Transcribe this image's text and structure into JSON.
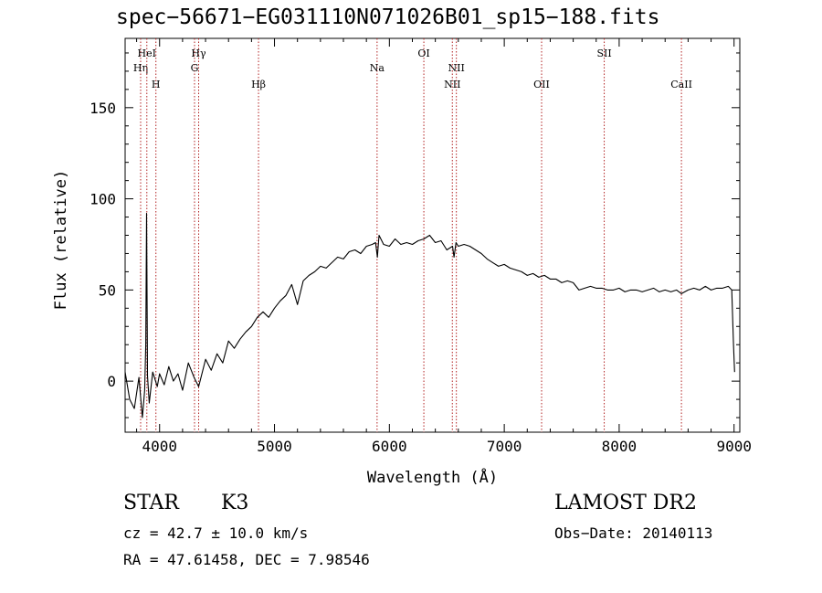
{
  "colors": {
    "spectrum": "#000000",
    "line_marker": "#b22222",
    "axis": "#000000"
  },
  "chart_data": {
    "type": "line",
    "title": "spec−56671−EG031110N071026B01_sp15−188.fits",
    "xlabel": "Wavelength (Å)",
    "ylabel": "Flux (relative)",
    "xlim": [
      3700,
      9050
    ],
    "ylim": [
      -28,
      188
    ],
    "grid": false,
    "x_ticks": [
      4000,
      5000,
      6000,
      7000,
      8000,
      9000
    ],
    "y_ticks": [
      0,
      50,
      100,
      150
    ],
    "series": [
      {
        "x": [
          3700,
          3740,
          3780,
          3820,
          3850,
          3870,
          3880,
          3887,
          3895,
          3910,
          3940,
          3980,
          4000,
          4040,
          4080,
          4120,
          4160,
          4200,
          4250,
          4300,
          4340,
          4400,
          4450,
          4500,
          4550,
          4600,
          4650,
          4700,
          4750,
          4800,
          4850,
          4900,
          4950,
          5000,
          5050,
          5100,
          5150,
          5200,
          5250,
          5300,
          5350,
          5400,
          5450,
          5500,
          5550,
          5600,
          5650,
          5700,
          5750,
          5800,
          5850,
          5880,
          5896,
          5910,
          5950,
          6000,
          6050,
          6100,
          6150,
          6200,
          6250,
          6300,
          6350,
          6400,
          6450,
          6500,
          6550,
          6563,
          6580,
          6600,
          6650,
          6700,
          6750,
          6800,
          6850,
          6900,
          6950,
          7000,
          7050,
          7100,
          7150,
          7200,
          7250,
          7300,
          7350,
          7400,
          7450,
          7500,
          7550,
          7600,
          7650,
          7700,
          7750,
          7800,
          7850,
          7900,
          7950,
          8000,
          8050,
          8100,
          8150,
          8200,
          8250,
          8300,
          8350,
          8400,
          8450,
          8500,
          8542,
          8600,
          8650,
          8700,
          8750,
          8800,
          8850,
          8900,
          8950,
          8980,
          8995,
          9005
        ],
        "y": [
          5,
          -10,
          -15,
          2,
          -20,
          -5,
          20,
          92,
          3,
          -12,
          5,
          -3,
          4,
          -2,
          8,
          0,
          4,
          -5,
          10,
          2,
          -3,
          12,
          6,
          15,
          10,
          22,
          18,
          23,
          27,
          30,
          35,
          38,
          35,
          40,
          44,
          47,
          53,
          42,
          55,
          58,
          60,
          63,
          62,
          65,
          68,
          67,
          71,
          72,
          70,
          74,
          75,
          76,
          68,
          80,
          75,
          74,
          78,
          75,
          76,
          75,
          77,
          78,
          80,
          76,
          77,
          72,
          74,
          68,
          76,
          74,
          75,
          74,
          72,
          70,
          67,
          65,
          63,
          64,
          62,
          61,
          60,
          58,
          59,
          57,
          58,
          56,
          56,
          54,
          55,
          54,
          50,
          51,
          52,
          51,
          51,
          50,
          50,
          51,
          49,
          50,
          50,
          49,
          50,
          51,
          49,
          50,
          49,
          50,
          48,
          50,
          51,
          50,
          52,
          50,
          51,
          51,
          52,
          50,
          20,
          5
        ]
      }
    ],
    "line_markers": [
      {
        "label": "Hη",
        "x": 3835,
        "level": 1
      },
      {
        "label": "HeI",
        "x": 3889,
        "level": 0
      },
      {
        "label": "H",
        "x": 3968,
        "level": 2
      },
      {
        "label": "Hγ",
        "x": 4340,
        "level": 0
      },
      {
        "label": "G",
        "x": 4304,
        "level": 1
      },
      {
        "label": "Hβ",
        "x": 4861,
        "level": 2
      },
      {
        "label": "Na",
        "x": 5893,
        "level": 1
      },
      {
        "label": "OI",
        "x": 6300,
        "level": 0
      },
      {
        "label": "NII",
        "x": 6583,
        "level": 1
      },
      {
        "label": "NII",
        "x": 6548,
        "level": 2
      },
      {
        "label": "OII",
        "x": 7325,
        "level": 2
      },
      {
        "label": "SII",
        "x": 7870,
        "level": 0
      },
      {
        "label": "CaII",
        "x": 8542,
        "level": 2
      }
    ]
  },
  "info": {
    "object_type": "STAR",
    "subclass": "K3",
    "survey": "LAMOST DR2",
    "cz": "cz = 42.7 ± 10.0 km/s",
    "obs_date": "Obs−Date: 20140113",
    "coords": "RA =  47.61458, DEC =   7.98546"
  }
}
